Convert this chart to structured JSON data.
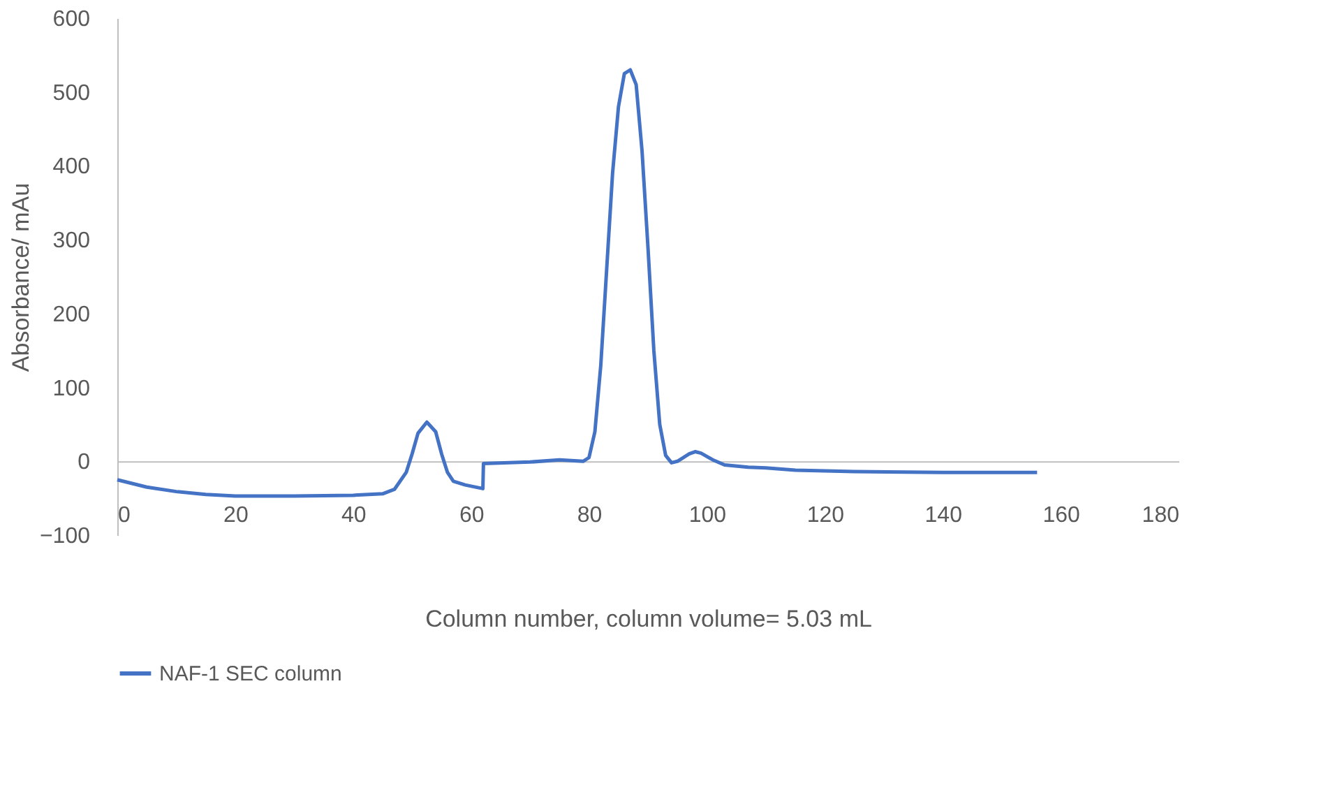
{
  "chart_data": {
    "type": "line",
    "xlabel": "Column number, column volume= 5.03 mL",
    "ylabel": "Absorbance/ mAu",
    "xlim": [
      0,
      180
    ],
    "xticks": [
      0,
      20,
      40,
      60,
      80,
      100,
      120,
      140,
      160,
      180
    ],
    "ylim": [
      -100,
      600
    ],
    "yticks": [
      -100,
      0,
      100,
      200,
      300,
      400,
      500,
      600
    ],
    "grid": false,
    "legend": "bottom",
    "marker": "none",
    "line_style": "solid",
    "series": [
      {
        "name": "NAF-1 SEC column",
        "color": "#4472c4",
        "x": [
          0,
          5,
          10,
          15,
          20,
          30,
          40,
          45,
          47,
          49,
          50,
          51,
          52.5,
          54,
          55,
          56,
          57,
          59,
          62,
          62.1,
          70,
          75,
          79,
          80,
          81,
          82,
          83,
          84,
          85,
          86,
          87,
          88,
          89,
          90,
          91,
          92,
          93,
          94,
          95,
          97,
          98,
          99,
          101,
          103,
          107,
          110,
          115,
          125,
          140,
          156
        ],
        "values": [
          -25,
          -35,
          -41,
          -45,
          -47,
          -47,
          -46,
          -44,
          -38,
          -15,
          10,
          38,
          53,
          40,
          10,
          -15,
          -27,
          -32,
          -37,
          -3,
          -1,
          2,
          0,
          5,
          40,
          130,
          260,
          390,
          480,
          525,
          530,
          510,
          420,
          290,
          150,
          50,
          8,
          -2,
          0,
          10,
          13,
          11,
          2,
          -5,
          -8,
          -9,
          -12,
          -14,
          -15,
          -15
        ]
      }
    ]
  }
}
